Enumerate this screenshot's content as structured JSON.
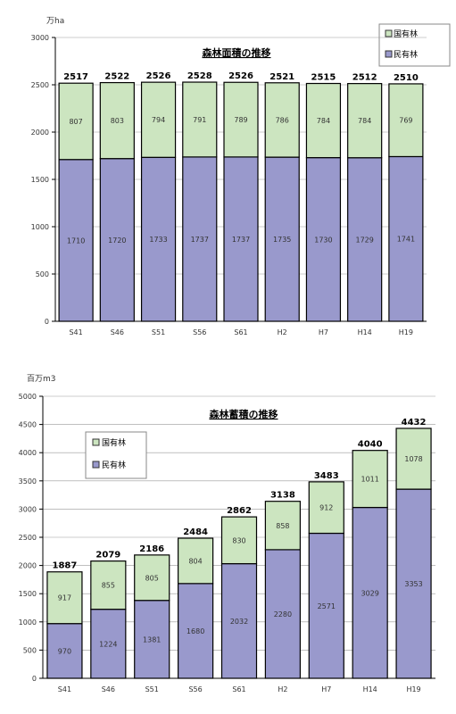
{
  "colors": {
    "private": "#9999cc",
    "national": "#cce5c0",
    "stroke": "#000000",
    "grid": "#999999"
  },
  "chart_data": [
    {
      "type": "bar",
      "stacked": true,
      "title": "森林面積の推移",
      "unit": "万ha",
      "categories": [
        "S41",
        "S46",
        "S51",
        "S56",
        "S61",
        "H2",
        "H7",
        "H14",
        "H19"
      ],
      "series": [
        {
          "name": "民有林",
          "values": [
            1710,
            1720,
            1733,
            1737,
            1737,
            1735,
            1730,
            1729,
            1741
          ]
        },
        {
          "name": "国有林",
          "values": [
            807,
            803,
            794,
            791,
            789,
            786,
            784,
            784,
            769
          ]
        }
      ],
      "totals": [
        2517,
        2522,
        2526,
        2528,
        2526,
        2521,
        2515,
        2512,
        2510
      ],
      "ylim": [
        0,
        3000
      ],
      "yticks": [
        0,
        500,
        1000,
        1500,
        2000,
        2500,
        3000
      ],
      "legend": [
        "国有林",
        "民有林"
      ],
      "legend_position": "top-right",
      "grid": true
    },
    {
      "type": "bar",
      "stacked": true,
      "title": "森林蓄積の推移",
      "unit": "百万m3",
      "categories": [
        "S41",
        "S46",
        "S51",
        "S56",
        "S61",
        "H2",
        "H7",
        "H14",
        "H19"
      ],
      "series": [
        {
          "name": "民有林",
          "values": [
            970,
            1224,
            1381,
            1680,
            2032,
            2280,
            2571,
            3029,
            3353
          ]
        },
        {
          "name": "国有林",
          "values": [
            917,
            855,
            805,
            804,
            830,
            858,
            912,
            1011,
            1078
          ]
        }
      ],
      "totals": [
        1887,
        2079,
        2186,
        2484,
        2862,
        3138,
        3483,
        4040,
        4432
      ],
      "ylim": [
        0,
        5000
      ],
      "yticks": [
        0,
        500,
        1000,
        1500,
        2000,
        2500,
        3000,
        3500,
        4000,
        4500,
        5000
      ],
      "legend": [
        "国有林",
        "民有林"
      ],
      "legend_position": "top-left",
      "grid": true
    }
  ]
}
